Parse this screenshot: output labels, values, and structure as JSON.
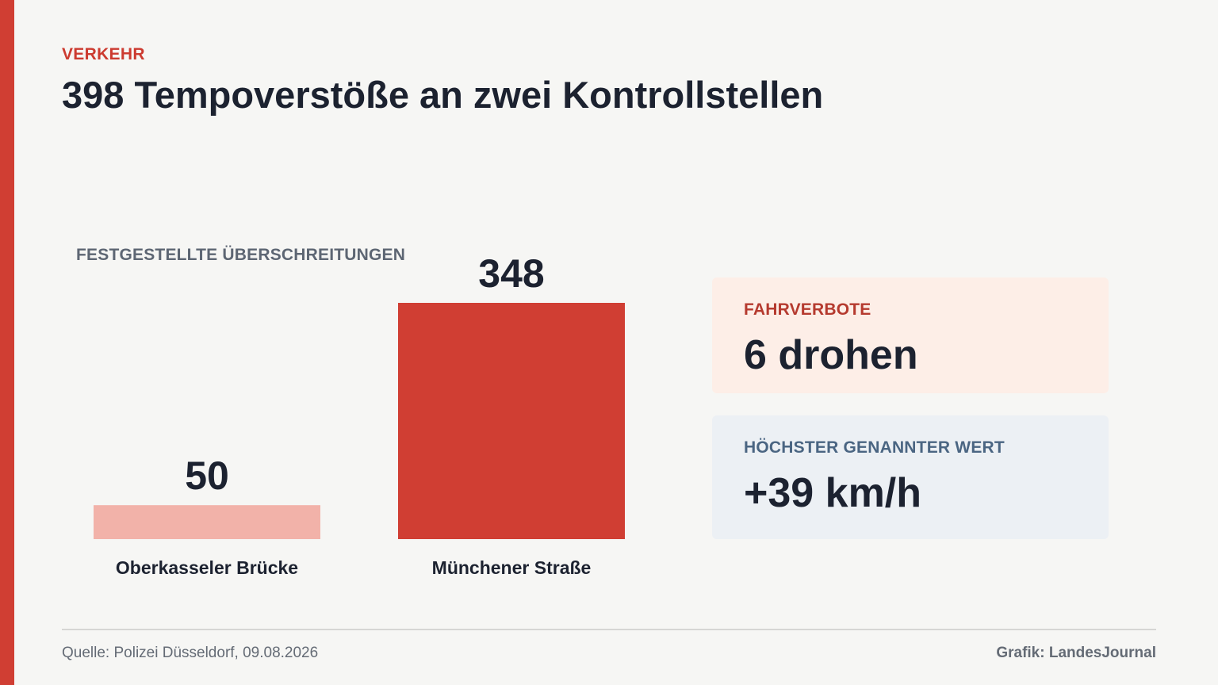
{
  "header": {
    "kicker": "VERKEHR",
    "headline": "398 Tempoverstöße an zwei Kontrollstellen"
  },
  "chart_label": "FESTGESTELLTE ÜBERSCHREITUNGEN",
  "chart_data": {
    "type": "bar",
    "categories": [
      "Oberkasseler Brücke",
      "Münchener Straße"
    ],
    "values": [
      50,
      348
    ],
    "value_labels": [
      "50",
      "348"
    ],
    "colors": [
      "#f2b2a9",
      "#d03e33"
    ],
    "title": "FESTGESTELLTE ÜBERSCHREITUNGEN",
    "xlabel": "",
    "ylabel": "",
    "ylim": [
      0,
      348
    ],
    "grid": false,
    "legend": "none"
  },
  "cards": [
    {
      "label": "FAHRVERBOTE",
      "value": "6 drohen"
    },
    {
      "label": "HÖCHSTER GENANNTER WERT",
      "value": "+39 km/h"
    }
  ],
  "footer": {
    "source": "Quelle: Polizei Düsseldorf, 09.08.2026",
    "credit": "Grafik: LandesJournal"
  },
  "colors": {
    "accent": "#d03e33",
    "background": "#f6f6f4",
    "text": "#1c2230"
  }
}
